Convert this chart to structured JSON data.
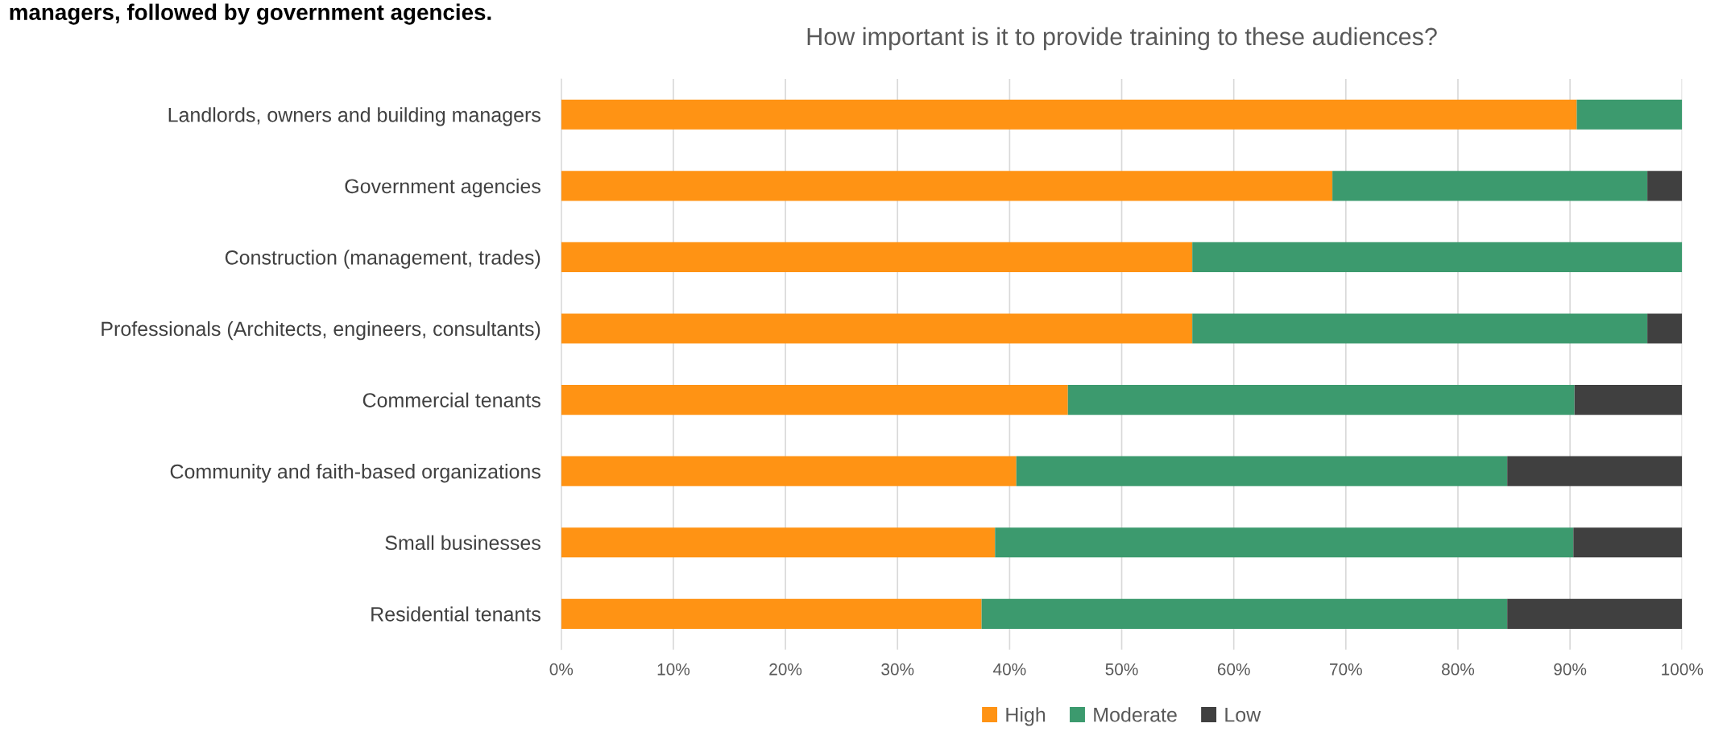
{
  "chart_data": {
    "type": "bar",
    "orientation": "horizontal",
    "stacked": true,
    "title": "How important is it to provide training to these audiences?",
    "annotations": [
      "managers, followed by government agencies."
    ],
    "categories": [
      "Landlords, owners and building managers",
      "Government agencies",
      "Construction (management, trades)",
      "Professionals (Architects, engineers, consultants)",
      "Commercial tenants",
      "Community and faith-based organizations",
      "Small businesses",
      "Residential tenants"
    ],
    "series": [
      {
        "name": "High",
        "color": "#ff9314",
        "values": [
          90.6,
          68.8,
          56.3,
          56.3,
          45.2,
          40.6,
          38.7,
          37.5
        ]
      },
      {
        "name": "Moderate",
        "color": "#3c9a6e",
        "values": [
          9.4,
          28.1,
          43.7,
          40.6,
          45.2,
          43.8,
          51.6,
          46.9
        ]
      },
      {
        "name": "Low",
        "color": "#404040",
        "values": [
          0,
          3.1,
          0,
          3.1,
          9.6,
          15.6,
          9.7,
          15.6
        ]
      }
    ],
    "xlim": [
      0,
      100
    ],
    "xticks": [
      {
        "value": 0,
        "label": "0%"
      },
      {
        "value": 10,
        "label": "10%"
      },
      {
        "value": 20,
        "label": "20%"
      },
      {
        "value": 30,
        "label": "30%"
      },
      {
        "value": 40,
        "label": "40%"
      },
      {
        "value": 50,
        "label": "50%"
      },
      {
        "value": 60,
        "label": "60%"
      },
      {
        "value": 70,
        "label": "70%"
      },
      {
        "value": 80,
        "label": "80%"
      },
      {
        "value": 90,
        "label": "90%"
      },
      {
        "value": 100,
        "label": "100%"
      }
    ],
    "grid": "x",
    "legend": "bottom"
  }
}
